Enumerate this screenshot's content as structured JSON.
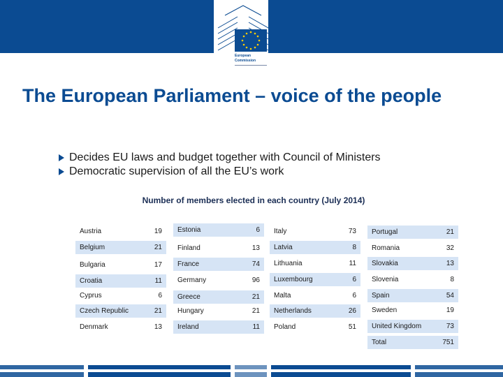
{
  "slide": {
    "title": "The European Parliament – voice of the people",
    "bullets": [
      "Decides EU laws and budget together with Council of Ministers",
      "Democratic supervision of all the EU’s work"
    ],
    "subtitle": "Number of members elected in each country (July 2014)"
  },
  "logo": {
    "line1": "European",
    "line2": "Commission"
  },
  "colors": {
    "banner": "#0b4b92",
    "title": "#0b4b92",
    "row_shade": "#d6e4f5",
    "eu_yellow": "#ffcc00"
  },
  "columns": [
    [
      {
        "country": "Austria",
        "seats": "19"
      },
      {
        "country": "Belgium",
        "seats": "21"
      },
      {
        "country": "Bulgaria",
        "seats": "17"
      },
      {
        "country": "Croatia",
        "seats": "11"
      },
      {
        "country": "Cyprus",
        "seats": "6"
      },
      {
        "country": "Czech Republic",
        "seats": "21"
      },
      {
        "country": "Denmark",
        "seats": "13"
      }
    ],
    [
      {
        "country": "Estonia",
        "seats": "6"
      },
      {
        "country": "Finland",
        "seats": "13"
      },
      {
        "country": "France",
        "seats": "74"
      },
      {
        "country": "Germany",
        "seats": "96"
      },
      {
        "country": "Greece",
        "seats": "21"
      },
      {
        "country": "Hungary",
        "seats": "21"
      },
      {
        "country": "Ireland",
        "seats": "11"
      }
    ],
    [
      {
        "country": "Italy",
        "seats": "73"
      },
      {
        "country": "Latvia",
        "seats": "8"
      },
      {
        "country": "Lithuania",
        "seats": "11"
      },
      {
        "country": "Luxembourg",
        "seats": "6"
      },
      {
        "country": "Malta",
        "seats": "6"
      },
      {
        "country": "Netherlands",
        "seats": "26"
      },
      {
        "country": "Poland",
        "seats": "51"
      }
    ],
    [
      {
        "country": "Portugal",
        "seats": "21"
      },
      {
        "country": "Romania",
        "seats": "32"
      },
      {
        "country": "Slovakia",
        "seats": "13"
      },
      {
        "country": "Slovenia",
        "seats": "8"
      },
      {
        "country": "Spain",
        "seats": "54"
      },
      {
        "country": "Sweden",
        "seats": "19"
      },
      {
        "country": "United Kingdom",
        "seats": "73"
      }
    ]
  ],
  "total": {
    "label": "Total",
    "value": "751"
  }
}
